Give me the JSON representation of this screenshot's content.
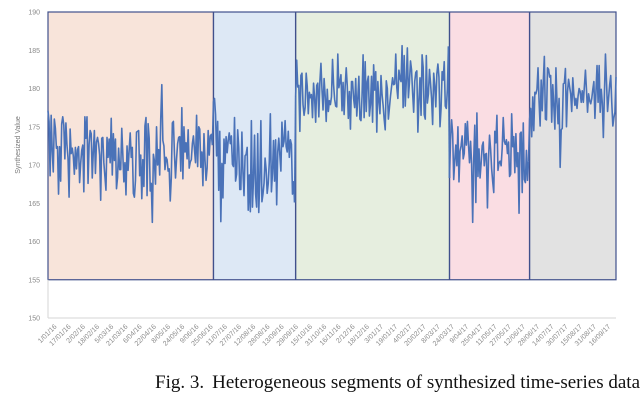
{
  "chart_data": {
    "type": "line",
    "ylabel": "Synthesized Value",
    "ylim": [
      150,
      190
    ],
    "yticks": [
      "150",
      "155",
      "160",
      "165",
      "170",
      "175",
      "180",
      "185",
      "190"
    ],
    "grid": false,
    "xtick_labels": [
      "1/01/16",
      "17/01/16",
      "2/02/16",
      "18/02/16",
      "5/03/16",
      "21/03/16",
      "6/04/16",
      "22/04/16",
      "8/05/16",
      "24/05/16",
      "9/06/16",
      "25/06/16",
      "11/07/16",
      "27/07/16",
      "12/08/16",
      "28/08/16",
      "13/09/16",
      "29/09/16",
      "15/10/16",
      "31/10/16",
      "16/11/16",
      "2/12/16",
      "18/12/16",
      "3/01/17",
      "19/01/17",
      "4/02/17",
      "20/02/17",
      "8/03/17",
      "24/03/17",
      "9/04/17",
      "25/04/17",
      "11/05/17",
      "27/05/17",
      "12/06/17",
      "28/06/17",
      "14/07/17",
      "30/07/17",
      "15/08/17",
      "31/08/17",
      "16/09/17"
    ],
    "segments": [
      {
        "start_index": 0,
        "end_index": 156,
        "color": "#f8e4da",
        "values": [
          177.1,
          175.7,
          168.6,
          176.5,
          171.8,
          169.1,
          176.0,
          174.8,
          172.2,
          172.4,
          166.2,
          172.4,
          167.9,
          175.4,
          176.3,
          175.2,
          170.8,
          175.5,
          172.6,
          170.9,
          165.8,
          174.7,
          171.5,
          172.2,
          171.2,
          168.8,
          172.3,
          169.5,
          172.0,
          172.4,
          167.7,
          170.2,
          171.9,
          172.6,
          166.5,
          176.3,
          173.5,
          176.3,
          167.6,
          172.7,
          174.5,
          174.1,
          168.3,
          171.8,
          174.5,
          168.9,
          173.0,
          173.6,
          172.8,
          171.3,
          165.4,
          173.5,
          173.6,
          170.3,
          168.5,
          166.7,
          173.6,
          171.0,
          173.4,
          170.3,
          176.1,
          168.7,
          174.1,
          170.6,
          173.4,
          166.9,
          168.4,
          172.2,
          169.4,
          169.4,
          174.8,
          171.4,
          167.8,
          170.3,
          166.1,
          172.5,
          169.3,
          171.9,
          174.2,
          171.0,
          172.3,
          166.3,
          165.8,
          168.0,
          174.3,
          174.4,
          174.5,
          168.6,
          171.3,
          165.6,
          170.7,
          167.2,
          175.1,
          176.2,
          166.0,
          175.4,
          173.5,
          166.6,
          167.6,
          162.5,
          171.4,
          170.5,
          167.5,
          175.0,
          170.0,
          172.0,
          168.7,
          176.1,
          180.5,
          173.2,
          172.5,
          169.4,
          171.0,
          170.7,
          169.2,
          169.5,
          165.3,
          168.3,
          175.5,
          175.7,
          171.4,
          168.3,
          170.8,
          172.8,
          173.6,
          173.7,
          169.2,
          177.5,
          168.2,
          175.0,
          171.7,
          172.9,
          170.8,
          174.6,
          169.6,
          170.4,
          170.7,
          172.8,
          173.8,
          172.0,
          170.3,
          176.5,
          169.8,
          175.0,
          174.7,
          169.7,
          171.7,
          167.3,
          174.1,
          170.6,
          168.0,
          169.6,
          174.5,
          171.3,
          173.8,
          174.0,
          172.6
        ]
      },
      {
        "start_index": 157,
        "end_index": 234,
        "color": "#dde8f5",
        "values": [
          178.3,
          178.7,
          176.6,
          171.2,
          175.7,
          166.7,
          174.4,
          162.6,
          170.2,
          165.7,
          173.4,
          170.2,
          173.7,
          171.6,
          173.2,
          174.2,
          172.8,
          173.8,
          170.1,
          169.8,
          176.2,
          167.9,
          168.8,
          174.6,
          172.3,
          166.8,
          166.8,
          174.3,
          169.1,
          166.0,
          171.2,
          171.4,
          172.3,
          164.1,
          168.7,
          163.9,
          175.8,
          164.5,
          168.2,
          173.9,
          166.2,
          164.5,
          174.1,
          163.8,
          168.2,
          175.8,
          165.2,
          166.2,
          167.6,
          170.9,
          169.4,
          166.3,
          167.6,
          170.4,
          176.7,
          166.5,
          168.9,
          173.2,
          167.9,
          173.3,
          164.8,
          171.7,
          173.5,
          171.3,
          169.2,
          175.6,
          172.4,
          173.1,
          175.8,
          172.4,
          171.7,
          174.4,
          171.0,
          173.3,
          172.7,
          166.2,
          167.8,
          165.1
        ]
      },
      {
        "start_index": 235,
        "end_index": 380,
        "color": "#e6eedf",
        "values": [
          178.9,
          183.7,
          180.2,
          180.4,
          174.4,
          181.7,
          182.0,
          177.9,
          176.5,
          177.5,
          182.0,
          180.3,
          176.7,
          179.5,
          178.8,
          179.2,
          176.2,
          180.7,
          178.8,
          175.6,
          180.4,
          180.7,
          176.3,
          180.9,
          183.3,
          179.8,
          177.2,
          181.3,
          179.1,
          175.7,
          179.9,
          177.0,
          178.4,
          177.9,
          178.9,
          183.8,
          180.5,
          178.6,
          177.7,
          177.6,
          184.5,
          180.1,
          180.9,
          181.8,
          177.1,
          180.8,
          176.6,
          180.3,
          182.7,
          180.3,
          176.1,
          179.6,
          174.7,
          180.9,
          180.9,
          178.7,
          177.5,
          181.3,
          176.4,
          178.7,
          181.6,
          176.0,
          175.8,
          179.0,
          184.4,
          176.2,
          183.5,
          177.0,
          180.9,
          181.6,
          176.4,
          177.9,
          181.6,
          175.6,
          183.1,
          179.8,
          182.2,
          174.3,
          180.9,
          178.4,
          176.7,
          181.7,
          179.2,
          177.8,
          176.0,
          174.6,
          181.0,
          180.0,
          176.0,
          177.5,
          179.0,
          180.2,
          181.4,
          180.5,
          180.6,
          184.5,
          180.1,
          178.7,
          182.4,
          181.3,
          180.9,
          185.6,
          177.5,
          184.3,
          177.7,
          180.9,
          185.3,
          178.8,
          180.8,
          183.6,
          182.4,
          179.4,
          176.9,
          180.9,
          182.1,
          182.3,
          174.3,
          178.5,
          181.4,
          176.5,
          184.4,
          182.8,
          176.6,
          176.0,
          184.3,
          178.1,
          179.3,
          182.5,
          180.7,
          178.7,
          175.3,
          182.0,
          180.4,
          177.6,
          181.9,
          183.2,
          181.5,
          175.0,
          177.4,
          182.2,
          181.1,
          183.5,
          177.7,
          177.4,
          179.9,
          185.5
        ]
      },
      {
        "start_index": 381,
        "end_index": 456,
        "color": "#fadde3",
        "values": [
          168.3,
          173.3,
          175.9,
          174.1,
          168.1,
          170.6,
          172.6,
          169.9,
          175.0,
          167.8,
          171.8,
          172.5,
          173.8,
          170.8,
          171.5,
          175.4,
          172.6,
          175.7,
          172.7,
          170.3,
          173.1,
          170.1,
          162.5,
          170.9,
          175.2,
          165.1,
          176.8,
          168.5,
          172.1,
          168.3,
          170.2,
          172.5,
          173.0,
          169.9,
          171.4,
          171.5,
          164.4,
          170.7,
          173.9,
          172.1,
          169.5,
          167.8,
          166.4,
          174.4,
          172.9,
          176.5,
          169.3,
          170.3,
          170.5,
          169.9,
          172.2,
          176.2,
          173.1,
          172.7,
          173.3,
          171.5,
          173.0,
          168.5,
          168.8,
          176.7,
          172.4,
          173.7,
          169.0,
          174.1,
          169.8,
          171.6,
          163.7,
          174.1,
          174.3,
          166.4,
          175.5,
          168.1,
          167.7,
          171.9,
          168.0,
          170.5
        ]
      },
      {
        "start_index": 457,
        "end_index": 539,
        "color": "#e2e2e2",
        "values": [
          176.0,
          177.4,
          173.7,
          178.9,
          174.5,
          179.5,
          179.3,
          179.9,
          182.7,
          178.3,
          175.1,
          181.1,
          177.1,
          180.9,
          184.2,
          176.0,
          175.9,
          182.7,
          182.5,
          181.5,
          181.7,
          175.6,
          180.5,
          177.7,
          174.7,
          182.7,
          178.2,
          175.4,
          178.7,
          169.7,
          174.6,
          174.8,
          180.6,
          180.7,
          182.6,
          175.0,
          179.6,
          181.2,
          180.2,
          179.3,
          177.0,
          181.4,
          179.2,
          177.8,
          178.7,
          177.4,
          179.0,
          180.0,
          179.6,
          178.2,
          179.7,
          178.2,
          180.3,
          182.4,
          179.8,
          176.9,
          179.3,
          178.4,
          178.0,
          178.7,
          179.9,
          180.9,
          176.1,
          179.6,
          183.0,
          178.2,
          183.0,
          176.9,
          179.9,
          178.1,
          173.6,
          179.3,
          184.5,
          180.8,
          177.0,
          178.8,
          180.5,
          181.7,
          178.1,
          175.1,
          176.2,
          176.9,
          181.5
        ]
      }
    ],
    "series_color": "#4a72b8",
    "divider_color": "#40508c",
    "axis_color": "#d6d6d6"
  },
  "caption": {
    "label": "Fig. 3.",
    "text": "Heterogeneous segments of synthesized time-series data"
  }
}
